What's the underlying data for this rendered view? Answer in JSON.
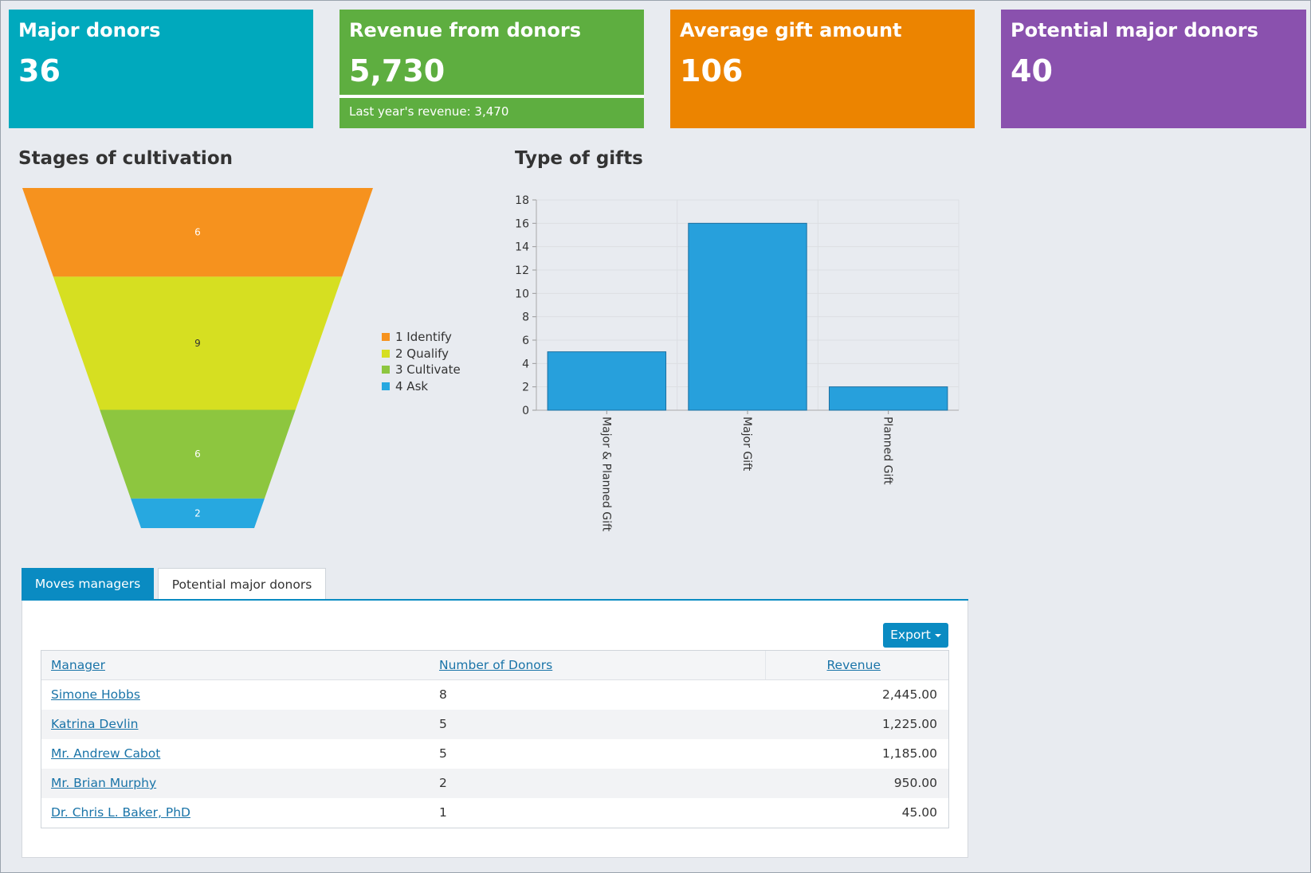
{
  "tiles": [
    {
      "title": "Major donors",
      "value": "36",
      "color": "#00a9bd"
    },
    {
      "title": "Revenue from donors",
      "value": "5,730",
      "sub": "Last year's revenue: 3,470",
      "color": "#5eae40"
    },
    {
      "title": "Average gift amount",
      "value": "106",
      "color": "#ec8400"
    },
    {
      "title": "Potential major donors",
      "value": "40",
      "color": "#8a51ae"
    }
  ],
  "stages_title": "Stages of cultivation",
  "gifts_title": "Type of gifts",
  "funnel": {
    "stages": [
      {
        "label": "1 Identify",
        "value": 6,
        "color": "#f6921e"
      },
      {
        "label": "2 Qualify",
        "value": 9,
        "color": "#d6df21"
      },
      {
        "label": "3 Cultivate",
        "value": 6,
        "color": "#8dc63f"
      },
      {
        "label": "4 Ask",
        "value": 2,
        "color": "#27a8e0"
      }
    ]
  },
  "chart_data": {
    "type": "bar",
    "categories": [
      "Major & Planned Gift",
      "Major Gift",
      "Planned Gift"
    ],
    "values": [
      5,
      16,
      2
    ],
    "ylim": [
      0,
      18
    ],
    "yticks": [
      0,
      2,
      4,
      6,
      8,
      10,
      12,
      14,
      16,
      18
    ],
    "grid": true,
    "bar_color": "#27a0dc"
  },
  "tabs": [
    "Moves managers",
    "Potential major donors"
  ],
  "export_label": "Export",
  "table": {
    "headers": [
      "Manager",
      "Number of Donors",
      "Revenue"
    ],
    "rows": [
      [
        "Simone Hobbs",
        "8",
        "2,445.00"
      ],
      [
        "Katrina Devlin",
        "5",
        "1,225.00"
      ],
      [
        "Mr. Andrew Cabot",
        "5",
        "1,185.00"
      ],
      [
        "Mr. Brian Murphy",
        "2",
        "950.00"
      ],
      [
        "Dr. Chris L. Baker, PhD",
        "1",
        "45.00"
      ]
    ]
  }
}
